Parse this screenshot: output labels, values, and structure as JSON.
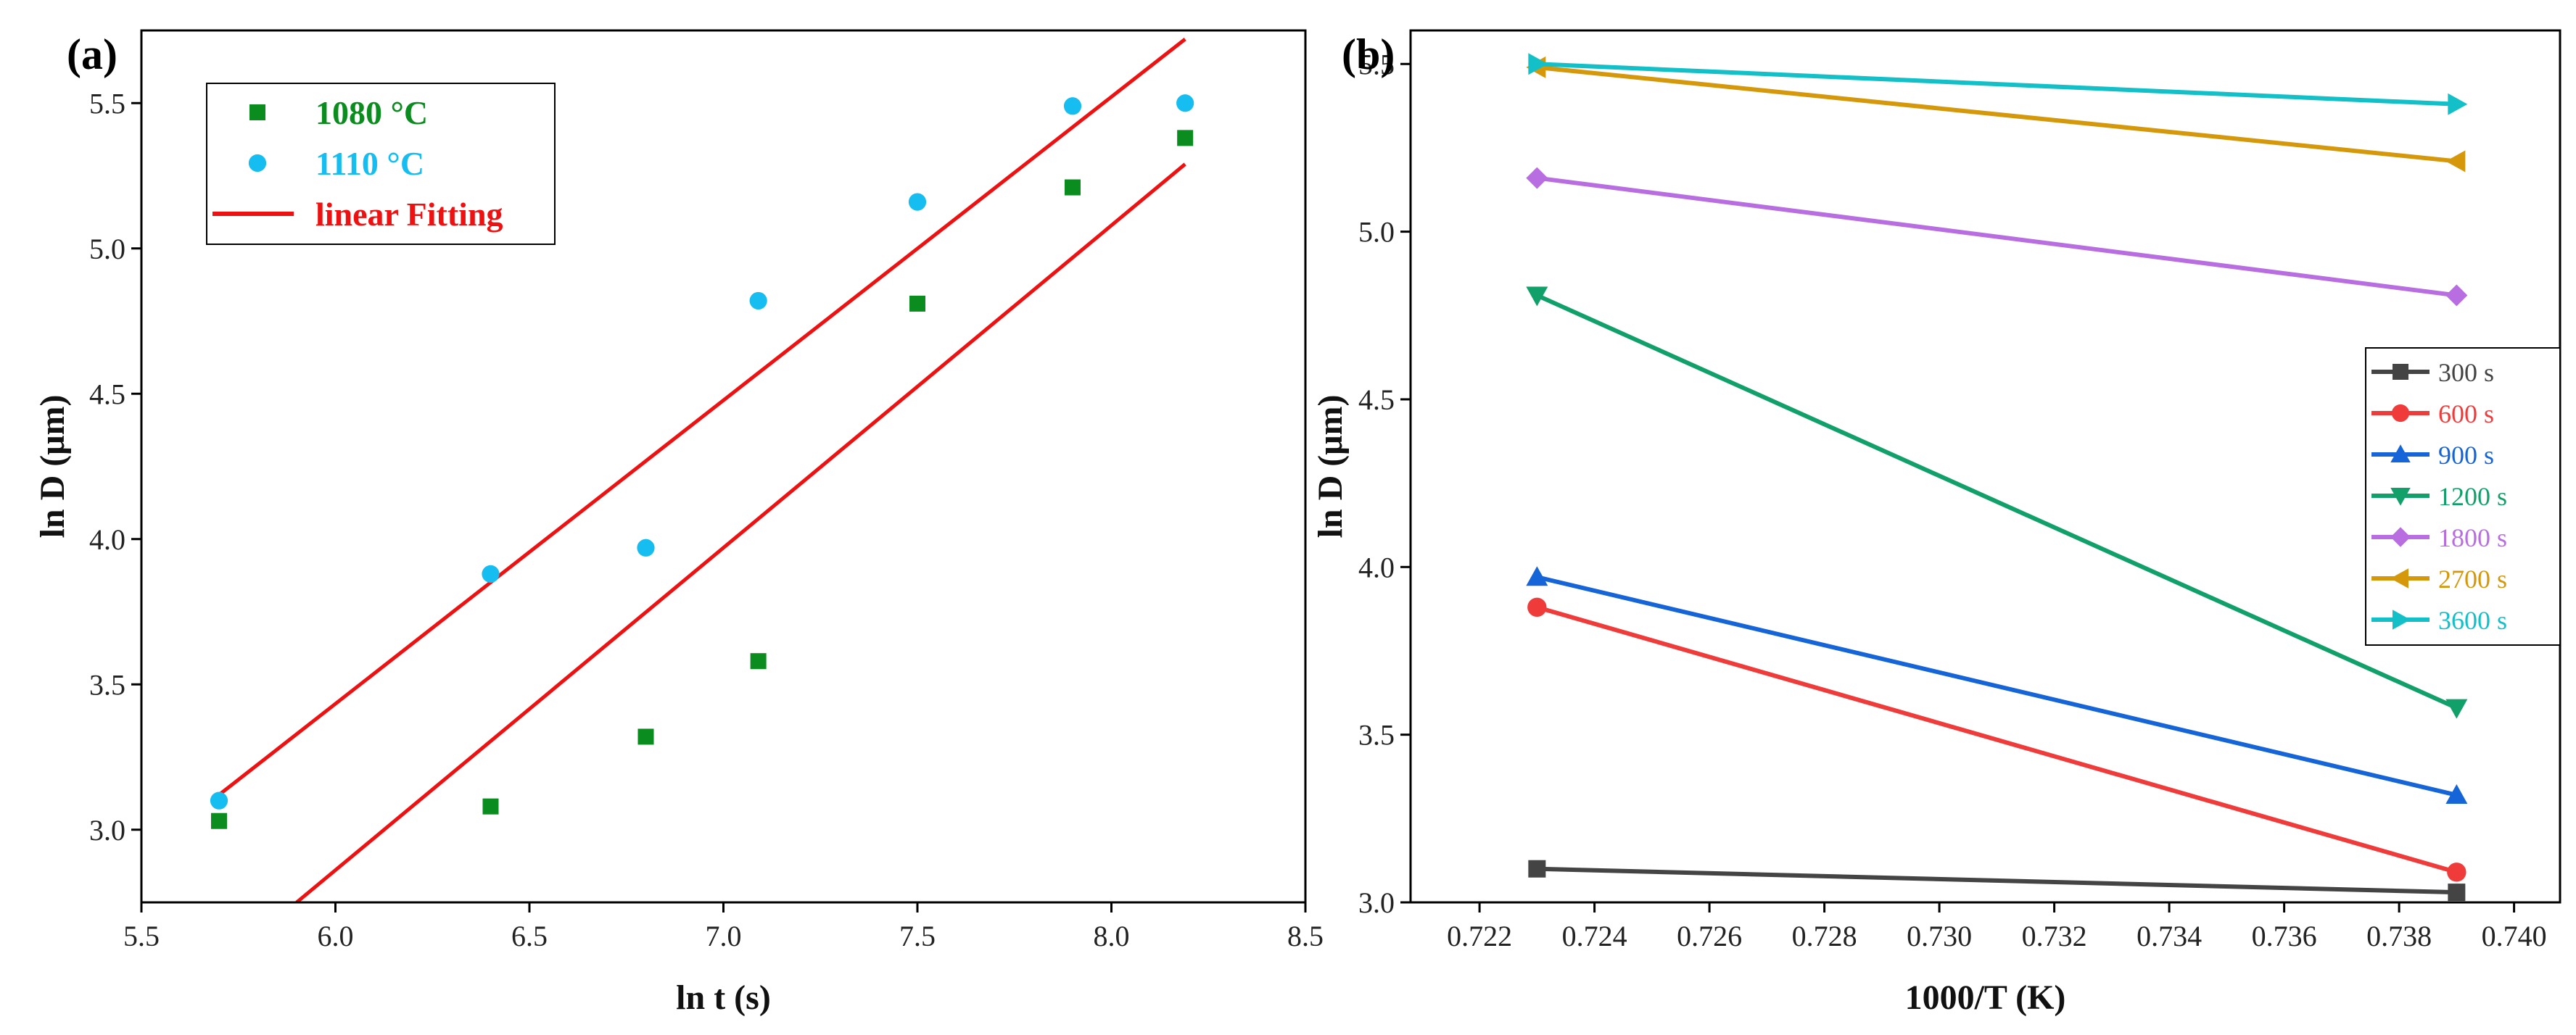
{
  "chart_data": [
    {
      "panel": "(a)",
      "type": "scatter",
      "title": "",
      "xlabel": "ln t (s)",
      "ylabel": "ln D (μm)",
      "xlim": [
        5.5,
        8.5
      ],
      "ylim": [
        2.75,
        5.75
      ],
      "xticks": [
        "5.5",
        "6.0",
        "6.5",
        "7.0",
        "7.5",
        "8.0",
        "8.5"
      ],
      "yticks": [
        "3.0",
        "3.5",
        "4.0",
        "4.5",
        "5.0",
        "5.5"
      ],
      "legend_position": "top-left",
      "series": [
        {
          "name": "1080 °C",
          "color": "#0a8c1e",
          "marker": "square",
          "x": [
            5.7,
            6.4,
            6.8,
            7.09,
            7.5,
            7.9,
            8.19
          ],
          "y": [
            3.03,
            3.08,
            3.32,
            3.58,
            4.81,
            5.21,
            5.38
          ]
        },
        {
          "name": "1110 °C",
          "color": "#15bdf0",
          "marker": "circle",
          "x": [
            5.7,
            6.4,
            6.8,
            7.09,
            7.5,
            7.9,
            8.19
          ],
          "y": [
            3.1,
            3.88,
            3.97,
            4.82,
            5.16,
            5.49,
            5.5
          ]
        }
      ],
      "fit_lines": [
        {
          "name": "linear Fitting",
          "color": "#ee1111",
          "x": [
            5.7,
            8.19
          ],
          "y": [
            3.12,
            5.72
          ]
        },
        {
          "name": "linear Fitting",
          "color": "#ee1111",
          "x": [
            5.9,
            8.19
          ],
          "y": [
            2.75,
            5.29
          ]
        }
      ],
      "legend": [
        {
          "label": "1080 °C",
          "color": "#0a8c1e",
          "marker": "square"
        },
        {
          "label": "1110 °C",
          "color": "#15bdf0",
          "marker": "circle"
        },
        {
          "label": "linear Fitting",
          "color": "#ee1111",
          "marker": "line"
        }
      ]
    },
    {
      "panel": "(b)",
      "type": "line",
      "title": "",
      "xlabel": "1000/T (K)",
      "ylabel": "ln D (μm)",
      "xlim": [
        0.7208,
        0.7408
      ],
      "ylim": [
        3.0,
        5.6
      ],
      "xticks": [
        "0.722",
        "0.724",
        "0.726",
        "0.728",
        "0.730",
        "0.732",
        "0.734",
        "0.736",
        "0.738",
        "0.740"
      ],
      "yticks": [
        "3.0",
        "3.5",
        "4.0",
        "4.5",
        "5.0",
        "5.5"
      ],
      "legend_position": "right",
      "x": [
        0.723,
        0.739
      ],
      "series": [
        {
          "name": "300 s",
          "color": "#444444",
          "marker": "square",
          "values": [
            3.1,
            3.03
          ]
        },
        {
          "name": "600 s",
          "color": "#f03b3b",
          "marker": "circle",
          "values": [
            3.88,
            3.09
          ]
        },
        {
          "name": "900 s",
          "color": "#1565d8",
          "marker": "triangle-up",
          "values": [
            3.97,
            3.32
          ]
        },
        {
          "name": "1200 s",
          "color": "#12a06a",
          "marker": "triangle-down",
          "values": [
            4.81,
            3.58
          ]
        },
        {
          "name": "1800 s",
          "color": "#b86ee0",
          "marker": "diamond",
          "values": [
            5.16,
            4.81
          ]
        },
        {
          "name": "2700 s",
          "color": "#d4980a",
          "marker": "triangle-left",
          "values": [
            5.49,
            5.21
          ]
        },
        {
          "name": "3600 s",
          "color": "#14c0c8",
          "marker": "triangle-right",
          "values": [
            5.5,
            5.38
          ]
        }
      ]
    }
  ]
}
